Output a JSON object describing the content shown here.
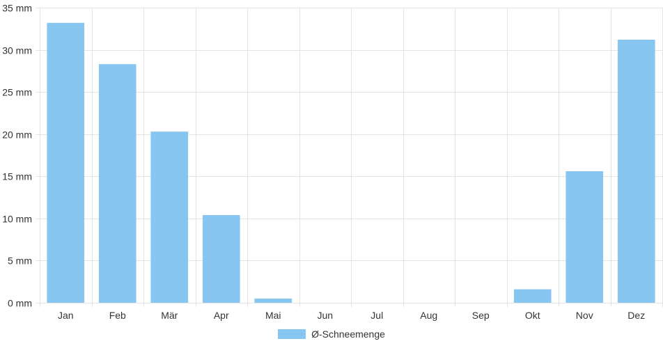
{
  "chart_data": {
    "type": "bar",
    "categories": [
      "Jan",
      "Feb",
      "Mär",
      "Apr",
      "Mai",
      "Jun",
      "Jul",
      "Aug",
      "Sep",
      "Okt",
      "Nov",
      "Dez"
    ],
    "series": [
      {
        "name": "Ø-Schneemenge",
        "values": [
          33.2,
          28.3,
          20.3,
          10.4,
          0.5,
          0,
          0,
          0,
          0,
          1.6,
          15.6,
          31.2
        ],
        "color": "#88c6f2"
      }
    ],
    "y_unit": "mm",
    "ylim": [
      0,
      35
    ],
    "y_ticks": [
      0,
      5,
      10,
      15,
      20,
      25,
      30,
      35
    ],
    "y_tick_labels": [
      "0 mm",
      "5 mm",
      "10 mm",
      "15 mm",
      "20 mm",
      "25 mm",
      "30 mm",
      "35 mm"
    ],
    "grid": true,
    "legend_position": "bottom-center"
  }
}
